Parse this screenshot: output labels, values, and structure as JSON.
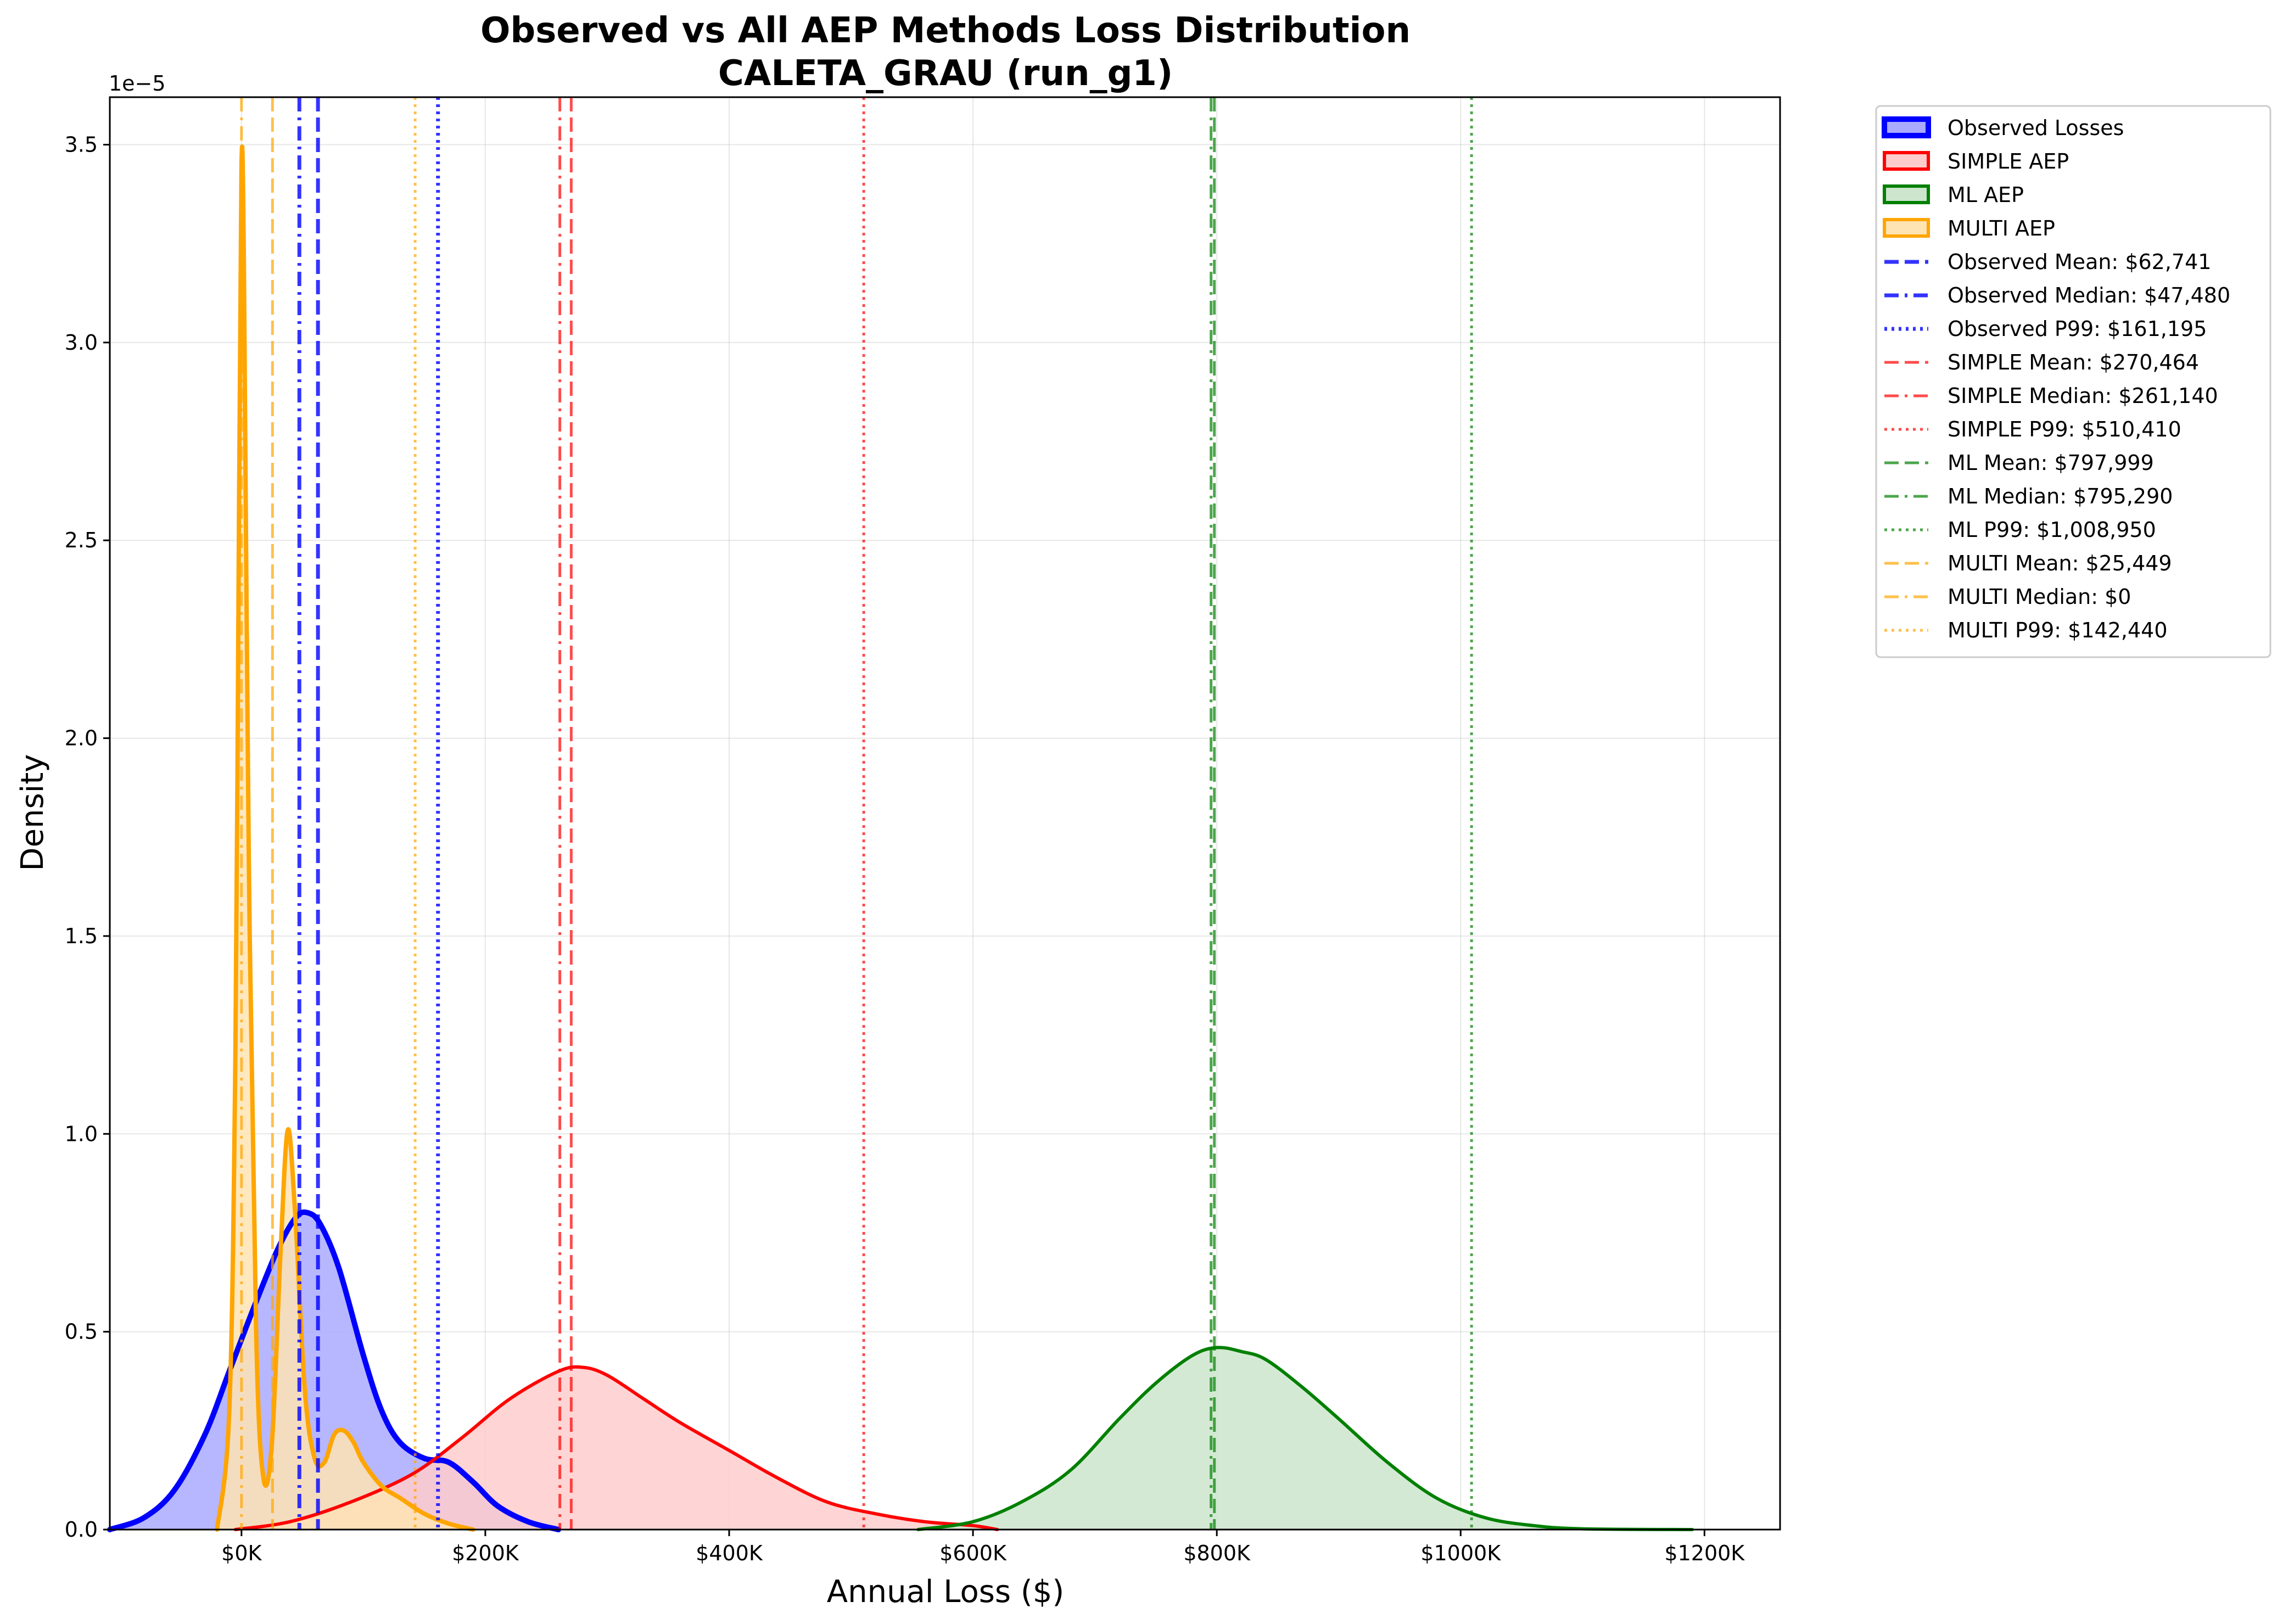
{
  "chart_data": {
    "type": "area",
    "title_line1": "Observed vs All AEP Methods Loss Distribution",
    "title_line2": "CALETA_GRAU (run_g1)",
    "xlabel": "Annual Loss ($)",
    "ylabel": "Density",
    "y_offset_label": "1e−5",
    "xlim": [
      -108000,
      1262000
    ],
    "ylim": [
      0,
      3.62
    ],
    "grid": true,
    "legend_position": "upper-left outside right",
    "x_ticks": [
      {
        "value": 0,
        "label": "$0K"
      },
      {
        "value": 200000,
        "label": "$200K"
      },
      {
        "value": 400000,
        "label": "$400K"
      },
      {
        "value": 600000,
        "label": "$600K"
      },
      {
        "value": 800000,
        "label": "$800K"
      },
      {
        "value": 1000000,
        "label": "$1000K"
      },
      {
        "value": 1200000,
        "label": "$1200K"
      }
    ],
    "y_ticks": [
      {
        "value": 0,
        "label": "0.0"
      },
      {
        "value": 0.5,
        "label": "0.5"
      },
      {
        "value": 1.0,
        "label": "1.0"
      },
      {
        "value": 1.5,
        "label": "1.5"
      },
      {
        "value": 2.0,
        "label": "2.0"
      },
      {
        "value": 2.5,
        "label": "2.5"
      },
      {
        "value": 3.0,
        "label": "3.0"
      },
      {
        "value": 3.5,
        "label": "3.5"
      }
    ],
    "series": [
      {
        "name": "Observed Losses",
        "color": "#0000ff",
        "fill": "#aaaaff",
        "line_width": 10,
        "points": [
          [
            -108000,
            0
          ],
          [
            -80000,
            0.03
          ],
          [
            -55000,
            0.1
          ],
          [
            -30000,
            0.24
          ],
          [
            -10000,
            0.4
          ],
          [
            10000,
            0.56
          ],
          [
            30000,
            0.71
          ],
          [
            45000,
            0.79
          ],
          [
            55000,
            0.8
          ],
          [
            65000,
            0.77
          ],
          [
            80000,
            0.66
          ],
          [
            100000,
            0.44
          ],
          [
            115000,
            0.3
          ],
          [
            130000,
            0.22
          ],
          [
            150000,
            0.18
          ],
          [
            170000,
            0.17
          ],
          [
            190000,
            0.12
          ],
          [
            210000,
            0.06
          ],
          [
            235000,
            0.02
          ],
          [
            260000,
            0
          ]
        ]
      },
      {
        "name": "SIMPLE AEP",
        "color": "#ff0000",
        "fill": "#ffcccc",
        "line_width": 6,
        "points": [
          [
            -5000,
            0
          ],
          [
            40000,
            0.02
          ],
          [
            90000,
            0.07
          ],
          [
            140000,
            0.14
          ],
          [
            180000,
            0.23
          ],
          [
            220000,
            0.33
          ],
          [
            260000,
            0.4
          ],
          [
            280000,
            0.41
          ],
          [
            300000,
            0.39
          ],
          [
            330000,
            0.33
          ],
          [
            360000,
            0.27
          ],
          [
            400000,
            0.2
          ],
          [
            440000,
            0.13
          ],
          [
            480000,
            0.07
          ],
          [
            520000,
            0.04
          ],
          [
            560000,
            0.02
          ],
          [
            600000,
            0.01
          ],
          [
            620000,
            0
          ]
        ]
      },
      {
        "name": "ML AEP",
        "color": "#008000",
        "fill": "#cce5cc",
        "line_width": 6,
        "points": [
          [
            555000,
            0
          ],
          [
            600000,
            0.02
          ],
          [
            640000,
            0.07
          ],
          [
            680000,
            0.15
          ],
          [
            720000,
            0.28
          ],
          [
            750000,
            0.37
          ],
          [
            780000,
            0.44
          ],
          [
            800000,
            0.46
          ],
          [
            820000,
            0.45
          ],
          [
            840000,
            0.43
          ],
          [
            870000,
            0.36
          ],
          [
            900000,
            0.28
          ],
          [
            940000,
            0.17
          ],
          [
            980000,
            0.08
          ],
          [
            1020000,
            0.03
          ],
          [
            1060000,
            0.01
          ],
          [
            1100000,
            0.002
          ],
          [
            1190000,
            0
          ]
        ]
      },
      {
        "name": "MULTI AEP",
        "color": "#ffa500",
        "fill": "#ffe4b3",
        "line_width": 8,
        "points": [
          [
            -20000,
            0
          ],
          [
            -10000,
            0.3
          ],
          [
            -5000,
            1.2
          ],
          [
            -2000,
            2.6
          ],
          [
            0,
            3.45
          ],
          [
            2000,
            3.2
          ],
          [
            6000,
            1.7
          ],
          [
            12000,
            0.5
          ],
          [
            18000,
            0.13
          ],
          [
            25000,
            0.22
          ],
          [
            32000,
            0.7
          ],
          [
            38000,
            1.01
          ],
          [
            44000,
            0.8
          ],
          [
            52000,
            0.35
          ],
          [
            60000,
            0.18
          ],
          [
            68000,
            0.17
          ],
          [
            76000,
            0.24
          ],
          [
            84000,
            0.25
          ],
          [
            92000,
            0.22
          ],
          [
            100000,
            0.17
          ],
          [
            115000,
            0.11
          ],
          [
            130000,
            0.08
          ],
          [
            150000,
            0.04
          ],
          [
            170000,
            0.015
          ],
          [
            190000,
            0
          ]
        ]
      }
    ],
    "vlines": [
      {
        "label": "Observed Mean: $62,741",
        "x": 62741,
        "color": "#0000ff",
        "style": "dashed",
        "alpha": 0.8,
        "width": 7
      },
      {
        "label": "Observed Median: $47,480",
        "x": 47480,
        "color": "#0000ff",
        "style": "dashdot",
        "alpha": 0.8,
        "width": 7
      },
      {
        "label": "Observed P99: $161,195",
        "x": 161195,
        "color": "#0000ff",
        "style": "dotted",
        "alpha": 0.8,
        "width": 7
      },
      {
        "label": "SIMPLE Mean: $270,464",
        "x": 270464,
        "color": "#ff0000",
        "style": "dashed",
        "alpha": 0.7,
        "width": 5
      },
      {
        "label": "SIMPLE Median: $261,140",
        "x": 261140,
        "color": "#ff0000",
        "style": "dashdot",
        "alpha": 0.7,
        "width": 5
      },
      {
        "label": "SIMPLE P99: $510,410",
        "x": 510410,
        "color": "#ff0000",
        "style": "dotted",
        "alpha": 0.7,
        "width": 5
      },
      {
        "label": "ML Mean: $797,999",
        "x": 797999,
        "color": "#008000",
        "style": "dashed",
        "alpha": 0.7,
        "width": 5
      },
      {
        "label": "ML Median: $795,290",
        "x": 795290,
        "color": "#008000",
        "style": "dashdot",
        "alpha": 0.7,
        "width": 5
      },
      {
        "label": "ML P99: $1,008,950",
        "x": 1008950,
        "color": "#008000",
        "style": "dotted",
        "alpha": 0.7,
        "width": 5
      },
      {
        "label": "MULTI Mean: $25,449",
        "x": 25449,
        "color": "#ffa500",
        "style": "dashed",
        "alpha": 0.7,
        "width": 5
      },
      {
        "label": "MULTI Median: $0",
        "x": 0,
        "color": "#ffa500",
        "style": "dashdot",
        "alpha": 0.7,
        "width": 5
      },
      {
        "label": "MULTI P99: $142,440",
        "x": 142440,
        "color": "#ffa500",
        "style": "dotted",
        "alpha": 0.7,
        "width": 5
      }
    ]
  }
}
